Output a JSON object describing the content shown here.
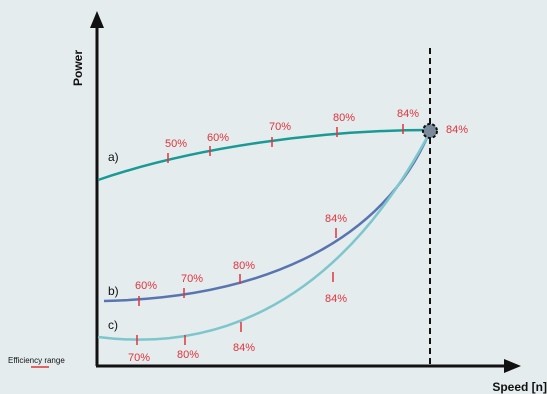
{
  "axes": {
    "y_label": "Power",
    "x_label": "Speed [n]"
  },
  "colors": {
    "background": "#e4ecee",
    "axis": "#111111",
    "efficiency": "#e0343c",
    "curve_a": "#1a9a94",
    "curve_b": "#5a74b0",
    "curve_c": "#7cc6cc"
  },
  "curves": {
    "a": {
      "label": "a)",
      "efficiency_labels": [
        "50%",
        "60%",
        "70%",
        "80%",
        "84%"
      ]
    },
    "b": {
      "label": "b)",
      "efficiency_labels": [
        "60%",
        "70%",
        "80%",
        "84%"
      ]
    },
    "c": {
      "label": "c)",
      "efficiency_labels": [
        "70%",
        "80%",
        "84%",
        "84%"
      ]
    }
  },
  "operating_point": {
    "label": "84%"
  },
  "legend": {
    "efficiency_range": "Efficiency range"
  }
}
